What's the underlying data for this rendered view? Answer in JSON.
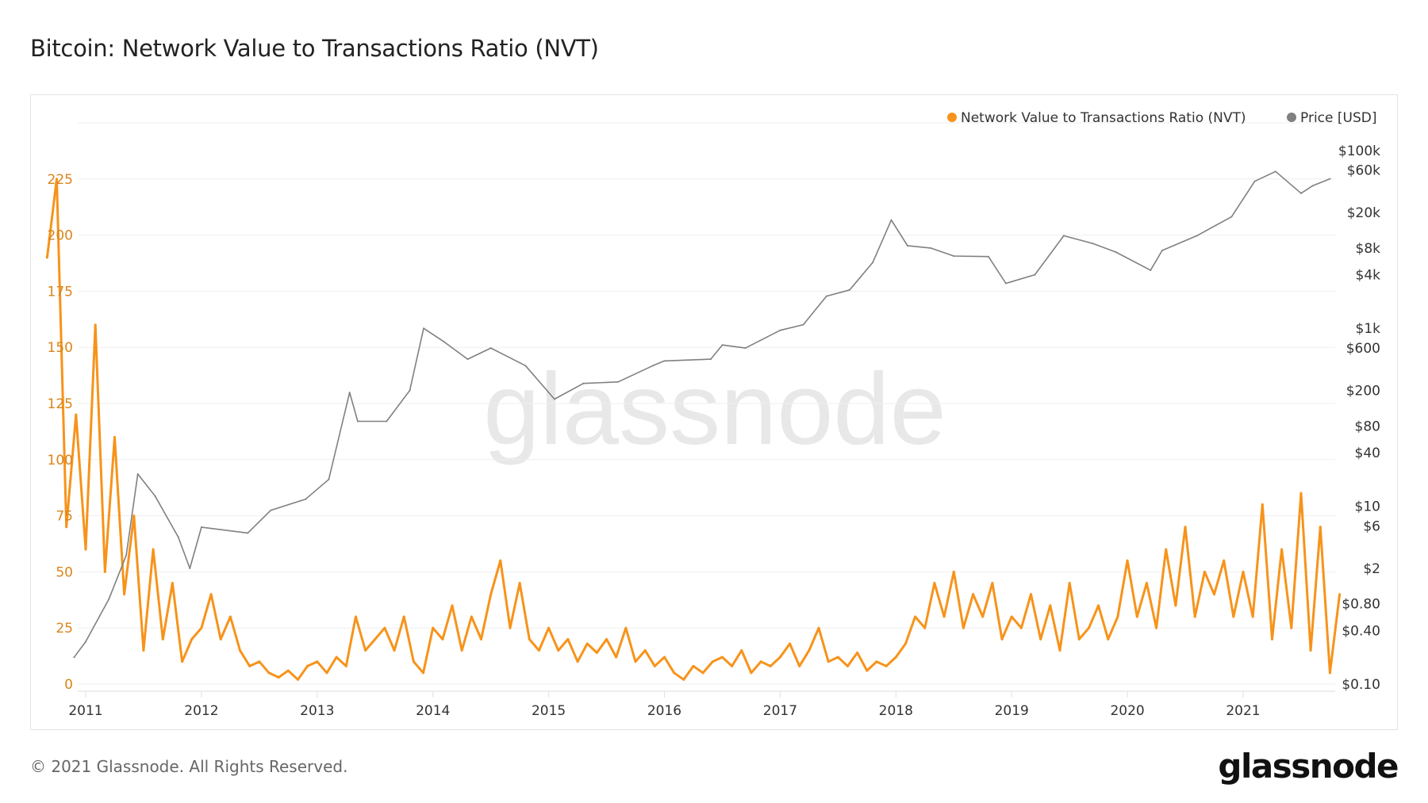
{
  "title": "Bitcoin: Network Value to Transactions Ratio (NVT)",
  "footer": {
    "copyright": "© 2021 Glassnode. All Rights Reserved.",
    "logo": "glassnode"
  },
  "watermark": "glassnode",
  "chart_data": {
    "type": "line",
    "title": "Bitcoin: Network Value to Transactions Ratio (NVT)",
    "legend_position": "top-right",
    "grid": true,
    "x_ticks": [
      "2011",
      "2012",
      "2013",
      "2014",
      "2015",
      "2016",
      "2017",
      "2018",
      "2019",
      "2020",
      "2021"
    ],
    "left_axis": {
      "ticks": [
        "0",
        "25",
        "50",
        "75",
        "100",
        "125",
        "150",
        "175",
        "200",
        "225"
      ],
      "tick_values": [
        0,
        25,
        50,
        75,
        100,
        125,
        150,
        175,
        200,
        225
      ],
      "ylim": [
        0,
        250
      ],
      "color": "#d9851a"
    },
    "right_axis": {
      "scale": "log",
      "ylim": [
        0.1,
        100000
      ],
      "ticks": [
        "$100k",
        "$60k",
        "$20k",
        "$8k",
        "$4k",
        "$1k",
        "$600",
        "$200",
        "$80",
        "$40",
        "$10",
        "$6",
        "$2",
        "$0.80",
        "$0.40",
        "$0.10"
      ],
      "tick_values": [
        100000,
        60000,
        20000,
        8000,
        4000,
        1000,
        600,
        200,
        80,
        40,
        10,
        6,
        2,
        0.8,
        0.4,
        0.1
      ]
    },
    "series": [
      {
        "name": "Network Value to Transactions Ratio (NVT)",
        "axis": "left",
        "color": "#f7931a",
        "start": "2010-09",
        "frequency": "monthly",
        "values": [
          190,
          225,
          70,
          120,
          60,
          160,
          50,
          110,
          40,
          75,
          15,
          60,
          20,
          45,
          10,
          20,
          25,
          40,
          20,
          30,
          15,
          8,
          10,
          5,
          3,
          6,
          2,
          8,
          10,
          5,
          12,
          8,
          30,
          15,
          20,
          25,
          15,
          30,
          10,
          5,
          25,
          20,
          35,
          15,
          30,
          20,
          40,
          55,
          25,
          45,
          20,
          15,
          25,
          15,
          20,
          10,
          18,
          14,
          20,
          12,
          25,
          10,
          15,
          8,
          12,
          5,
          2,
          8,
          5,
          10,
          12,
          8,
          15,
          5,
          10,
          8,
          12,
          18,
          8,
          15,
          25,
          10,
          12,
          8,
          14,
          6,
          10,
          8,
          12,
          18,
          30,
          25,
          45,
          30,
          50,
          25,
          40,
          30,
          45,
          20,
          30,
          25,
          40,
          20,
          35,
          15,
          45,
          20,
          25,
          35,
          20,
          30,
          55,
          30,
          45,
          25,
          60,
          35,
          70,
          30,
          50,
          40,
          55,
          30,
          50,
          30,
          80,
          20,
          60,
          25,
          85,
          15,
          70,
          5,
          40
        ]
      },
      {
        "name": "Price [USD]",
        "axis": "right",
        "color": "#808080",
        "points": [
          [
            2010.9,
            0.2
          ],
          [
            2011.0,
            0.3
          ],
          [
            2011.2,
            0.9
          ],
          [
            2011.35,
            2.8
          ],
          [
            2011.45,
            23
          ],
          [
            2011.6,
            13
          ],
          [
            2011.8,
            4.5
          ],
          [
            2011.9,
            2
          ],
          [
            2012.0,
            5.8
          ],
          [
            2012.4,
            5
          ],
          [
            2012.6,
            9
          ],
          [
            2012.9,
            12
          ],
          [
            2013.1,
            20
          ],
          [
            2013.28,
            190
          ],
          [
            2013.35,
            90
          ],
          [
            2013.6,
            90
          ],
          [
            2013.8,
            200
          ],
          [
            2013.92,
            1000
          ],
          [
            2014.1,
            700
          ],
          [
            2014.3,
            450
          ],
          [
            2014.5,
            600
          ],
          [
            2014.8,
            380
          ],
          [
            2015.05,
            160
          ],
          [
            2015.3,
            240
          ],
          [
            2015.6,
            250
          ],
          [
            2015.9,
            380
          ],
          [
            2016.0,
            430
          ],
          [
            2016.4,
            450
          ],
          [
            2016.5,
            650
          ],
          [
            2016.7,
            600
          ],
          [
            2017.0,
            950
          ],
          [
            2017.2,
            1100
          ],
          [
            2017.4,
            2300
          ],
          [
            2017.6,
            2700
          ],
          [
            2017.8,
            5500
          ],
          [
            2017.96,
            16500
          ],
          [
            2018.1,
            8500
          ],
          [
            2018.3,
            8000
          ],
          [
            2018.5,
            6500
          ],
          [
            2018.8,
            6400
          ],
          [
            2018.95,
            3200
          ],
          [
            2019.2,
            4000
          ],
          [
            2019.45,
            11000
          ],
          [
            2019.7,
            9000
          ],
          [
            2019.9,
            7200
          ],
          [
            2020.2,
            4500
          ],
          [
            2020.3,
            7500
          ],
          [
            2020.6,
            11000
          ],
          [
            2020.9,
            18000
          ],
          [
            2021.1,
            45000
          ],
          [
            2021.28,
            58000
          ],
          [
            2021.5,
            33000
          ],
          [
            2021.6,
            40000
          ],
          [
            2021.75,
            48000
          ]
        ]
      }
    ]
  }
}
